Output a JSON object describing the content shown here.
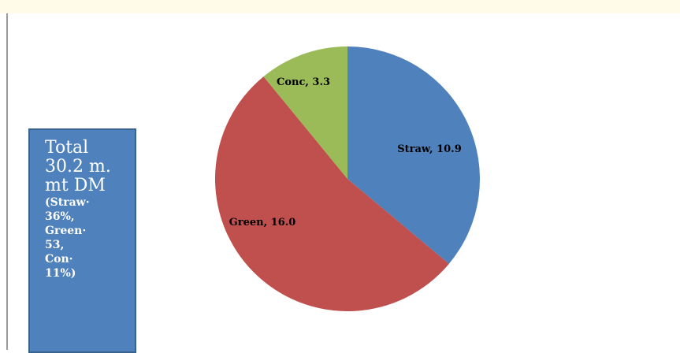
{
  "total_box": {
    "line1": "Total",
    "line2": "30.2 m.",
    "line3": "mt DM",
    "detail_lines": [
      "(Straw·",
      "36%,",
      "Green·",
      "53,",
      "Con·",
      "11%)"
    ]
  },
  "chart_data": {
    "type": "pie",
    "slices": [
      {
        "label": "Straw, 10.9",
        "name": "Straw",
        "value": 10.9,
        "color": "#4f81bd"
      },
      {
        "label": "Green, 16.0",
        "name": "Green",
        "value": 16.0,
        "color": "#c0504d"
      },
      {
        "label": "Conc, 3.3",
        "name": "Conc",
        "value": 3.3,
        "color": "#9bbb59"
      }
    ],
    "start_angle_deg": 0,
    "direction": "clockwise",
    "legend": "none"
  }
}
